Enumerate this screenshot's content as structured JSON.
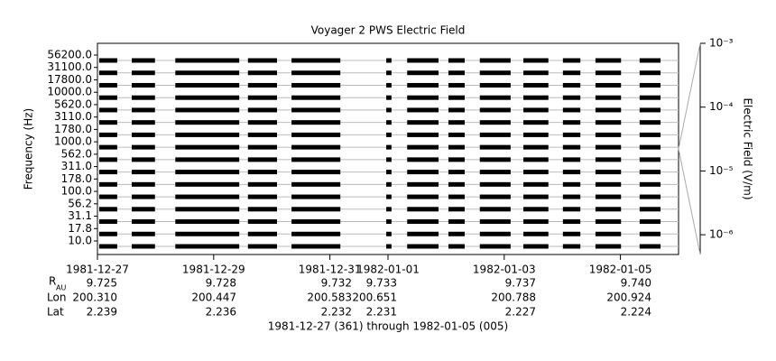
{
  "chart_data": {
    "type": "coverage",
    "title": "Voyager 2 PWS Electric Field",
    "y_label": "Frequency (Hz)",
    "y2_label": "Electric Field (V/m)",
    "x_label": "1981-12-27 (361) through 1982-01-05 (005)",
    "categories": [
      "56200.0",
      "31100.0",
      "17800.0",
      "10000.0",
      "5620.0",
      "3110.0",
      "1780.0",
      "1000.0",
      "562.0",
      "311.0",
      "178.0",
      "100.0",
      "56.2",
      "31.1",
      "17.8",
      "10.0"
    ],
    "color": "#000000",
    "xlim": [
      0,
      10
    ],
    "xticks": [
      {
        "value": 0,
        "label": "1981-12-27"
      },
      {
        "value": 2,
        "label": "1981-12-29"
      },
      {
        "value": 4,
        "label": "1981-12-31"
      },
      {
        "value": 5,
        "label": "1982-01-01"
      },
      {
        "value": 7,
        "label": "1982-01-03"
      },
      {
        "value": 9,
        "label": "1982-01-05"
      }
    ],
    "data_intervals": [
      [
        0.03,
        0.34
      ],
      [
        0.59,
        0.99
      ],
      [
        1.34,
        2.44
      ],
      [
        2.59,
        3.09
      ],
      [
        3.34,
        4.18
      ],
      [
        4.97,
        5.06
      ],
      [
        5.33,
        5.87
      ],
      [
        6.04,
        6.32
      ],
      [
        6.58,
        7.11
      ],
      [
        7.33,
        7.76
      ],
      [
        8.01,
        8.31
      ],
      [
        8.57,
        9.01
      ],
      [
        9.33,
        9.69
      ]
    ],
    "y2_log": true,
    "y2lim": [
      4.9e-07,
      0.001
    ],
    "y2ticks": [
      {
        "value": 0.001,
        "label": "10⁻³"
      },
      {
        "value": 0.0001,
        "label": "10⁻⁴"
      },
      {
        "value": 1e-05,
        "label": "10⁻⁵"
      },
      {
        "value": 1e-06,
        "label": "10⁻⁶"
      }
    ],
    "ephemeris": {
      "row_labels": [
        "R",
        "Lon",
        "Lat"
      ],
      "r_subscript": "AU",
      "rows": [
        [
          "9.725",
          "9.728",
          "9.732",
          "9.733",
          "9.737",
          "9.740"
        ],
        [
          "200.310",
          "200.447",
          "200.583",
          "200.651",
          "200.788",
          "200.924"
        ],
        [
          "2.239",
          "2.236",
          "2.232",
          "2.231",
          "2.227",
          "2.224"
        ]
      ]
    }
  }
}
